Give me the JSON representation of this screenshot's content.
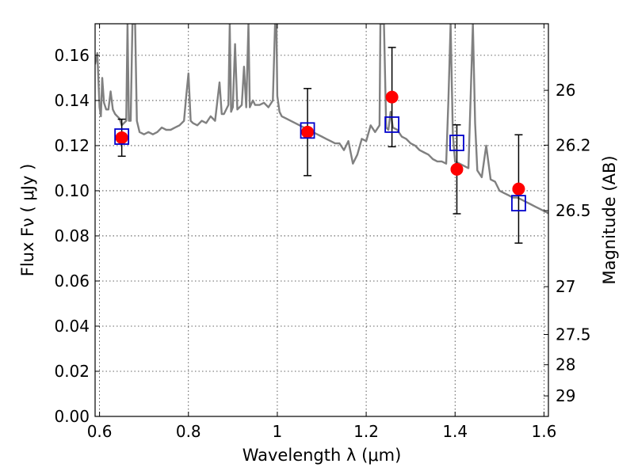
{
  "chart_data": {
    "type": "scatter",
    "xlabel": "Wavelength  λ (μm)",
    "ylabel": "Flux  Fν  ( μJy )",
    "y2label": "Magnitude (AB)",
    "xlim": [
      0.59,
      1.61
    ],
    "ylim": [
      0.0,
      0.174
    ],
    "grid": true,
    "x_ticks": [
      0.6,
      0.8,
      1.0,
      1.2,
      1.4,
      1.6
    ],
    "x_tick_labels": [
      "0.6",
      "0.8",
      "1",
      "1.2",
      "1.4",
      "1.6"
    ],
    "y_ticks": [
      0.0,
      0.02,
      0.04,
      0.06,
      0.08,
      0.1,
      0.12,
      0.14,
      0.16
    ],
    "y_tick_labels": [
      "0.00",
      "0.02",
      "0.04",
      "0.06",
      "0.08",
      "0.10",
      "0.12",
      "0.14",
      "0.16"
    ],
    "y2_ticks": [
      {
        "label": "26",
        "flux": 0.1445
      },
      {
        "label": "26.2",
        "flux": 0.1202
      },
      {
        "label": "26.5",
        "flux": 0.0912
      },
      {
        "label": "27",
        "flux": 0.0575
      },
      {
        "label": "27.5",
        "flux": 0.0363
      },
      {
        "label": "28",
        "flux": 0.0229
      },
      {
        "label": "29",
        "flux": 0.0091
      }
    ],
    "series": [
      {
        "kind": "observed",
        "color": "#ff0000",
        "points": [
          {
            "x": 0.65,
            "y": 0.1235,
            "err": 0.0082
          },
          {
            "x": 1.068,
            "y": 0.126,
            "err": 0.0193
          },
          {
            "x": 1.258,
            "y": 0.1415,
            "err": 0.022
          },
          {
            "x": 1.404,
            "y": 0.1095,
            "err": 0.0197
          },
          {
            "x": 1.543,
            "y": 0.1008,
            "err": 0.024
          }
        ]
      },
      {
        "kind": "model-bandpass",
        "color": "#0000cc",
        "points": [
          {
            "x": 0.65,
            "y": 0.124
          },
          {
            "x": 1.068,
            "y": 0.1267
          },
          {
            "x": 1.258,
            "y": 0.1293
          },
          {
            "x": 1.404,
            "y": 0.1212
          },
          {
            "x": 1.543,
            "y": 0.0945
          }
        ]
      },
      {
        "kind": "model-spectrum",
        "color": "#808080",
        "points": [
          [
            0.59,
            0.156
          ],
          [
            0.595,
            0.161
          ],
          [
            0.6,
            0.137
          ],
          [
            0.603,
            0.133
          ],
          [
            0.606,
            0.15
          ],
          [
            0.61,
            0.139
          ],
          [
            0.615,
            0.136
          ],
          [
            0.62,
            0.136
          ],
          [
            0.625,
            0.144
          ],
          [
            0.63,
            0.136
          ],
          [
            0.635,
            0.134
          ],
          [
            0.64,
            0.133
          ],
          [
            0.645,
            0.132
          ],
          [
            0.65,
            0.129
          ],
          [
            0.655,
            0.13
          ],
          [
            0.66,
            0.131
          ],
          [
            0.663,
            0.174
          ],
          [
            0.666,
            0.131
          ],
          [
            0.67,
            0.131
          ],
          [
            0.674,
            0.174
          ],
          [
            0.676,
            0.174
          ],
          [
            0.68,
            0.174
          ],
          [
            0.684,
            0.131
          ],
          [
            0.69,
            0.126
          ],
          [
            0.7,
            0.125
          ],
          [
            0.71,
            0.126
          ],
          [
            0.72,
            0.125
          ],
          [
            0.73,
            0.126
          ],
          [
            0.74,
            0.128
          ],
          [
            0.75,
            0.127
          ],
          [
            0.76,
            0.127
          ],
          [
            0.77,
            0.128
          ],
          [
            0.78,
            0.129
          ],
          [
            0.79,
            0.131
          ],
          [
            0.795,
            0.142
          ],
          [
            0.8,
            0.152
          ],
          [
            0.805,
            0.131
          ],
          [
            0.81,
            0.13
          ],
          [
            0.82,
            0.129
          ],
          [
            0.83,
            0.131
          ],
          [
            0.84,
            0.13
          ],
          [
            0.85,
            0.133
          ],
          [
            0.86,
            0.131
          ],
          [
            0.87,
            0.148
          ],
          [
            0.875,
            0.134
          ],
          [
            0.88,
            0.134
          ],
          [
            0.89,
            0.138
          ],
          [
            0.893,
            0.174
          ],
          [
            0.896,
            0.135
          ],
          [
            0.9,
            0.137
          ],
          [
            0.905,
            0.165
          ],
          [
            0.91,
            0.136
          ],
          [
            0.92,
            0.138
          ],
          [
            0.925,
            0.155
          ],
          [
            0.93,
            0.137
          ],
          [
            0.935,
            0.174
          ],
          [
            0.938,
            0.137
          ],
          [
            0.945,
            0.14
          ],
          [
            0.95,
            0.138
          ],
          [
            0.96,
            0.138
          ],
          [
            0.97,
            0.139
          ],
          [
            0.98,
            0.137
          ],
          [
            0.99,
            0.14
          ],
          [
            0.995,
            0.174
          ],
          [
            0.998,
            0.174
          ],
          [
            1.0,
            0.142
          ],
          [
            1.005,
            0.135
          ],
          [
            1.01,
            0.133
          ],
          [
            1.02,
            0.132
          ],
          [
            1.03,
            0.131
          ],
          [
            1.04,
            0.13
          ],
          [
            1.05,
            0.129
          ],
          [
            1.06,
            0.128
          ],
          [
            1.07,
            0.127
          ],
          [
            1.08,
            0.126
          ],
          [
            1.09,
            0.125
          ],
          [
            1.1,
            0.124
          ],
          [
            1.11,
            0.123
          ],
          [
            1.12,
            0.122
          ],
          [
            1.13,
            0.121
          ],
          [
            1.14,
            0.121
          ],
          [
            1.15,
            0.118
          ],
          [
            1.16,
            0.122
          ],
          [
            1.17,
            0.112
          ],
          [
            1.18,
            0.116
          ],
          [
            1.19,
            0.123
          ],
          [
            1.2,
            0.122
          ],
          [
            1.21,
            0.129
          ],
          [
            1.22,
            0.126
          ],
          [
            1.23,
            0.129
          ],
          [
            1.232,
            0.174
          ],
          [
            1.24,
            0.174
          ],
          [
            1.245,
            0.128
          ],
          [
            1.25,
            0.127
          ],
          [
            1.255,
            0.135
          ],
          [
            1.26,
            0.128
          ],
          [
            1.27,
            0.127
          ],
          [
            1.28,
            0.124
          ],
          [
            1.29,
            0.123
          ],
          [
            1.3,
            0.121
          ],
          [
            1.31,
            0.12
          ],
          [
            1.32,
            0.118
          ],
          [
            1.33,
            0.117
          ],
          [
            1.34,
            0.116
          ],
          [
            1.35,
            0.114
          ],
          [
            1.36,
            0.113
          ],
          [
            1.37,
            0.113
          ],
          [
            1.38,
            0.112
          ],
          [
            1.385,
            0.14
          ],
          [
            1.39,
            0.174
          ],
          [
            1.395,
            0.125
          ],
          [
            1.4,
            0.113
          ],
          [
            1.41,
            0.112
          ],
          [
            1.42,
            0.111
          ],
          [
            1.43,
            0.11
          ],
          [
            1.44,
            0.174
          ],
          [
            1.445,
            0.13
          ],
          [
            1.45,
            0.109
          ],
          [
            1.46,
            0.106
          ],
          [
            1.47,
            0.12
          ],
          [
            1.48,
            0.105
          ],
          [
            1.49,
            0.104
          ],
          [
            1.5,
            0.1
          ],
          [
            1.51,
            0.099
          ],
          [
            1.52,
            0.098
          ],
          [
            1.53,
            0.097
          ],
          [
            1.54,
            0.097
          ],
          [
            1.55,
            0.096
          ],
          [
            1.56,
            0.095
          ],
          [
            1.57,
            0.094
          ],
          [
            1.58,
            0.093
          ],
          [
            1.59,
            0.092
          ],
          [
            1.6,
            0.091
          ],
          [
            1.61,
            0.09
          ]
        ]
      }
    ]
  }
}
